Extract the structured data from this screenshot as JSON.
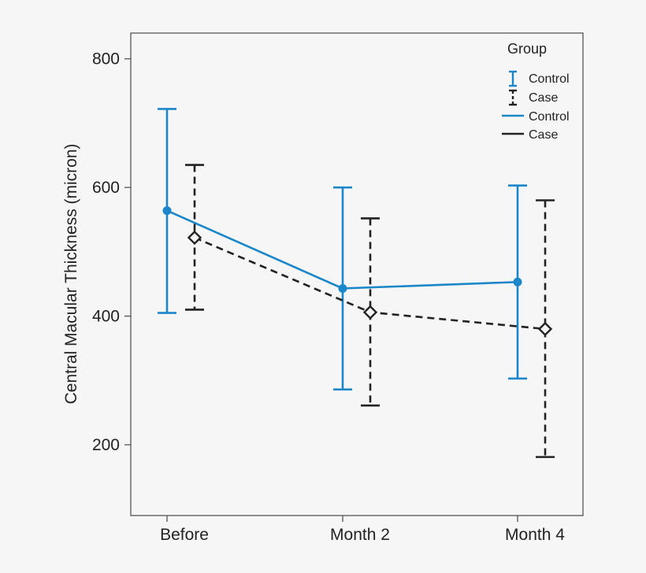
{
  "chart_data": {
    "type": "line",
    "title": "",
    "xlabel": "",
    "ylabel": "Central Macular Thickness (micron)",
    "ylim": [
      90,
      840
    ],
    "yticks": [
      200,
      400,
      600,
      800
    ],
    "y_tick_labels": [
      "200",
      "400",
      "600",
      "800"
    ],
    "categories": [
      "Before",
      "Month 2",
      "Month 4"
    ],
    "grid": false,
    "legend_position": "top-right",
    "legend": {
      "title": "Group",
      "entries": [
        {
          "label": "Control",
          "kind": "errorbar",
          "series": "Control"
        },
        {
          "label": "Case",
          "kind": "errorbar",
          "series": "Case"
        },
        {
          "label": "Control",
          "kind": "line",
          "series": "Control"
        },
        {
          "label": "Case",
          "kind": "line",
          "series": "Case"
        }
      ]
    },
    "series": [
      {
        "name": "Control",
        "color": "#1b87c9",
        "marker": "circle",
        "dash": "solid",
        "values": [
          564,
          443,
          453
        ],
        "lower": [
          405,
          286,
          303
        ],
        "upper": [
          722,
          600,
          603
        ]
      },
      {
        "name": "Case",
        "color": "#222222",
        "marker": "diamond",
        "dash": "dashed",
        "values": [
          522,
          406,
          380
        ],
        "lower": [
          410,
          261,
          181
        ],
        "upper": [
          635,
          552,
          580
        ]
      }
    ]
  }
}
